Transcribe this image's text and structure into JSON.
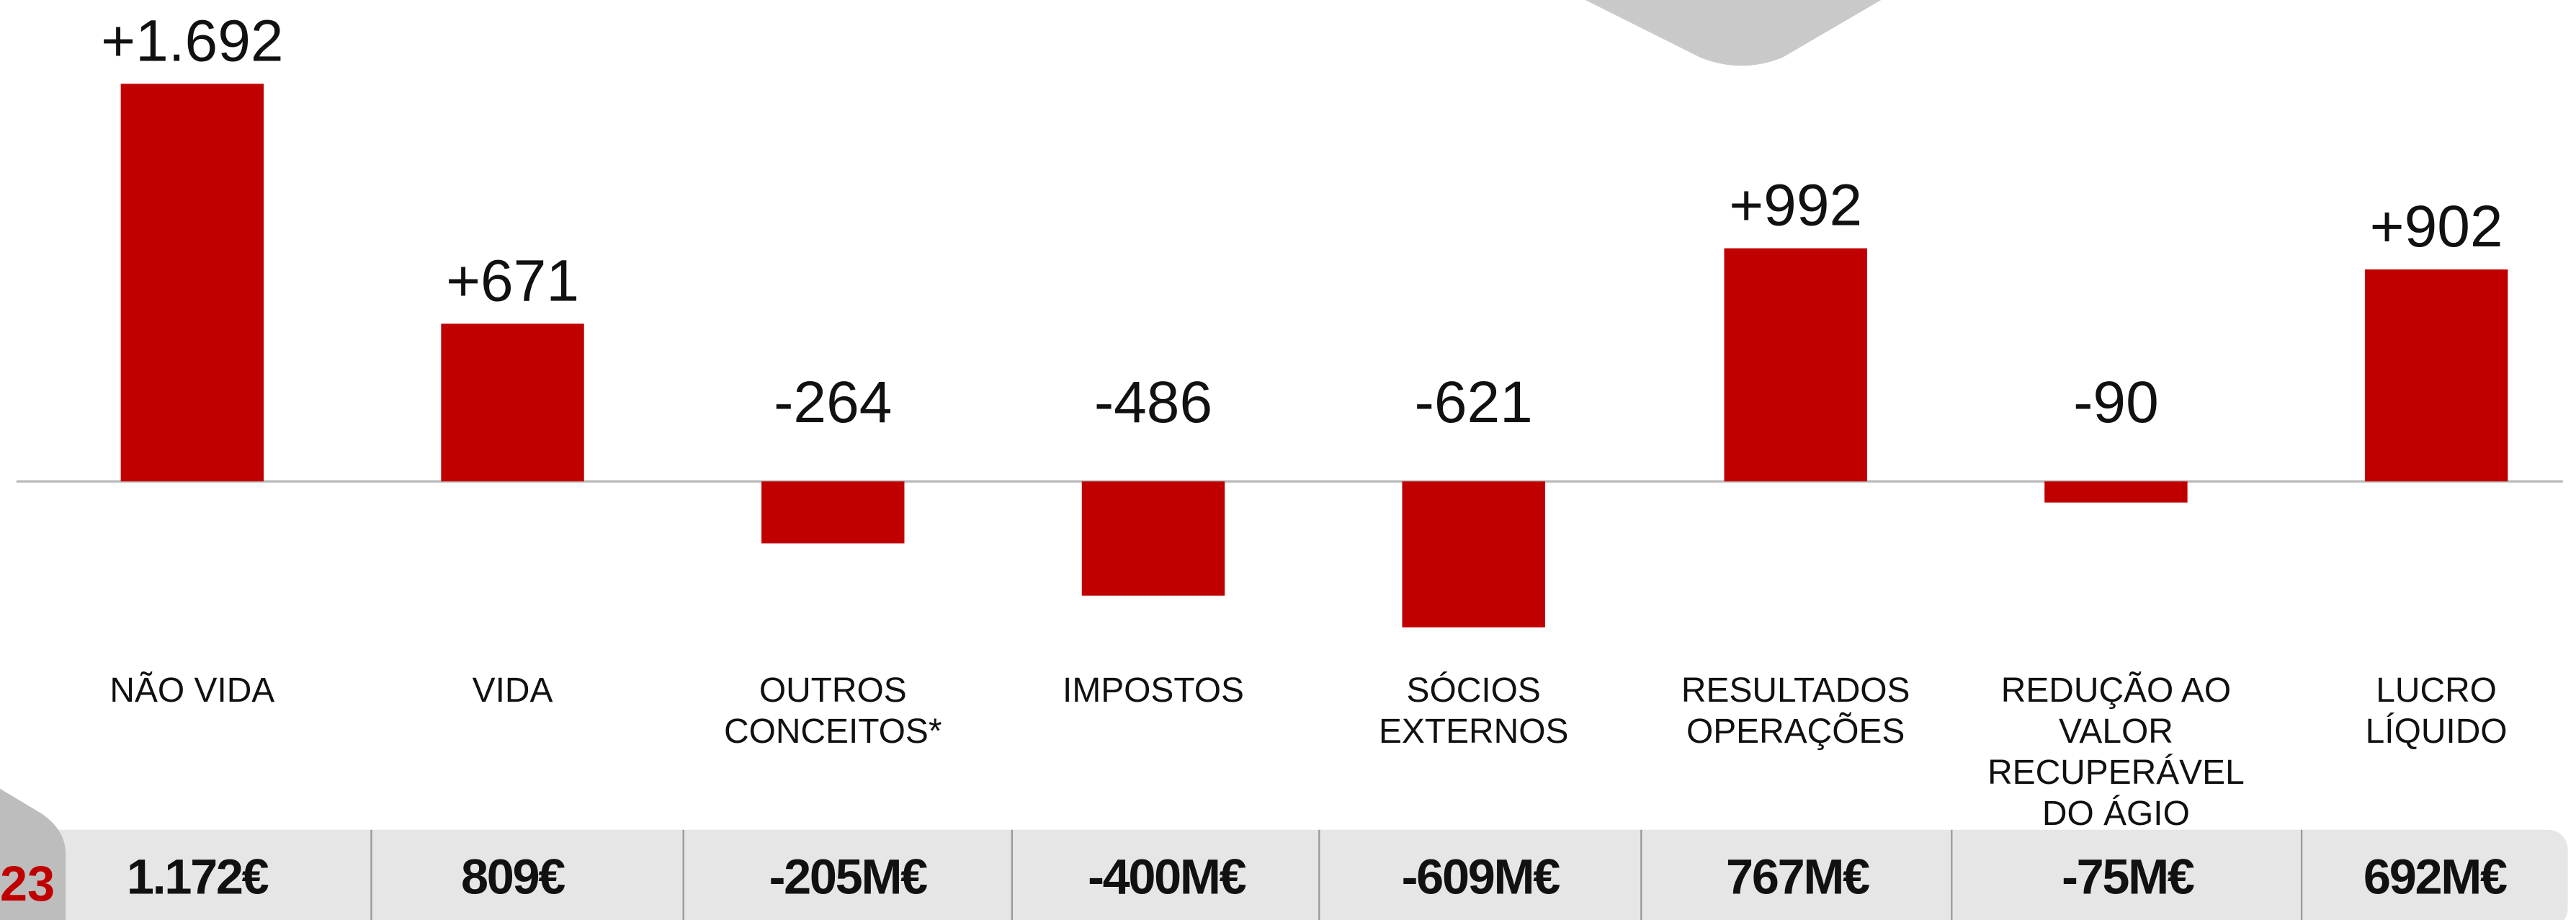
{
  "chart_data": {
    "type": "bar",
    "categories": [
      "NÃO VIDA",
      "VIDA",
      "OUTROS CONCEITOS*",
      "IMPOSTOS",
      "SÓCIOS EXTERNOS",
      "RESULTADOS OPERAÇÕES",
      "REDUÇÃO AO VALOR RECUPERÁVEL DO ÁGIO",
      "LUCRO LÍQUIDO"
    ],
    "values": [
      1692,
      671,
      -264,
      -486,
      -621,
      992,
      -90,
      902
    ],
    "value_labels": [
      "+1.692",
      "+671",
      "-264",
      "-486",
      "-621",
      "+992",
      "-90",
      "+902"
    ],
    "color": "#c00000"
  },
  "comparison": {
    "label": "23",
    "cells": [
      "1.172€",
      "809€",
      "-205M€",
      "-400M€",
      "-609M€",
      "767M€",
      "-75M€",
      "692M€"
    ]
  }
}
